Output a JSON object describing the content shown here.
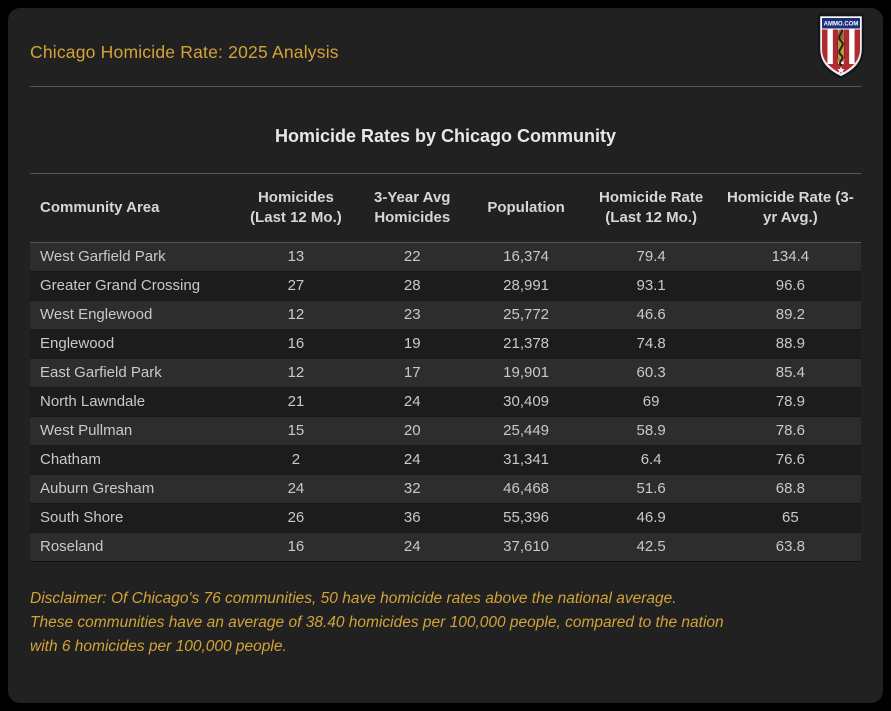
{
  "header": {
    "title": "Chicago Homicide Rate: 2025 Analysis",
    "logo_text": "AMMO.COM"
  },
  "chart_data": {
    "type": "table",
    "title": "Homicide Rates by Chicago Community",
    "columns": [
      "Community Area",
      "Homicides (Last 12 Mo.)",
      "3-Year Avg Homicides",
      "Population",
      "Homicide Rate (Last 12 Mo.)",
      "Homicide Rate (3-yr Avg.)"
    ],
    "rows": [
      [
        "West Garfield Park",
        "13",
        "22",
        "16,374",
        "79.4",
        "134.4"
      ],
      [
        "Greater Grand Crossing",
        "27",
        "28",
        "28,991",
        "93.1",
        "96.6"
      ],
      [
        "West Englewood",
        "12",
        "23",
        "25,772",
        "46.6",
        "89.2"
      ],
      [
        "Englewood",
        "16",
        "19",
        "21,378",
        "74.8",
        "88.9"
      ],
      [
        "East Garfield Park",
        "12",
        "17",
        "19,901",
        "60.3",
        "85.4"
      ],
      [
        "North Lawndale",
        "21",
        "24",
        "30,409",
        "69",
        "78.9"
      ],
      [
        "West Pullman",
        "15",
        "20",
        "25,449",
        "58.9",
        "78.6"
      ],
      [
        "Chatham",
        "2",
        "24",
        "31,341",
        "6.4",
        "76.6"
      ],
      [
        "Auburn Gresham",
        "24",
        "32",
        "46,468",
        "51.6",
        "68.8"
      ],
      [
        "South Shore",
        "26",
        "36",
        "55,396",
        "46.9",
        "65"
      ],
      [
        "Roseland",
        "16",
        "24",
        "37,610",
        "42.5",
        "63.8"
      ]
    ]
  },
  "disclaimer": {
    "lines": [
      "Disclaimer: Of Chicago's 76 communities, 50 have homicide rates above the national average.",
      "These communities have an average of 38.40 homicides per 100,000 people, compared to the nation",
      "with 6 homicides per 100,000 people."
    ]
  },
  "colors": {
    "page_bg": "#000000",
    "card_bg": "#212121",
    "accent_gold": "#d2a336",
    "divider": "#565656",
    "row_odd_bg": "#2d2d2d",
    "row_even_bg": "#1c1c1c",
    "header_text": "#d6d6d6",
    "cell_text": "#c9c9c9",
    "title_text": "#e8e8e8",
    "logo_blue": "#1b2f7a",
    "logo_red": "#b02a30"
  }
}
